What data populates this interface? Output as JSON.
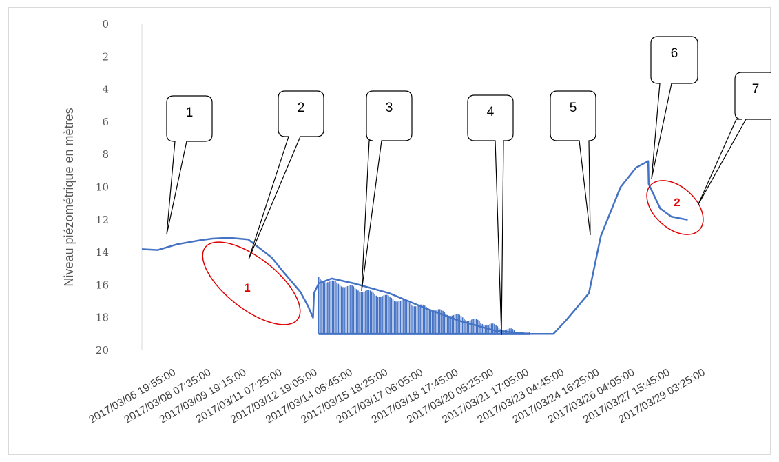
{
  "chart_data": {
    "type": "line",
    "ylabel": "Niveau piézométrique en mètres",
    "y_inverted": true,
    "ylim": [
      0,
      20
    ],
    "y_ticks": [
      "0",
      "2",
      "4",
      "6",
      "8",
      "10",
      "12",
      "14",
      "16",
      "18",
      "20"
    ],
    "x_ticks": [
      "2017/03/06 19:55:00",
      "2017/03/08 07:35:00",
      "2017/03/09 19:15:00",
      "2017/03/11 07:25:00",
      "2017/03/12 19:05:00",
      "2017/03/14 06:45:00",
      "2017/03/15 18:25:00",
      "2017/03/17 06:05:00",
      "2017/03/18 17:45:00",
      "2017/03/20 05:25:00",
      "2017/03/21 17:05:00",
      "2017/03/23 04:45:00",
      "2017/03/24 16:25:00",
      "2017/03/26 04:05:00",
      "2017/03/27 15:45:00",
      "2017/03/29 03:25:00"
    ],
    "grid": false,
    "series_color": "#4472c4",
    "series": [
      {
        "x": [
          "2017/03/06 19:55:00",
          "2017/03/07 12:00:00",
          "2017/03/08 07:35:00",
          "2017/03/09 07:00:00",
          "2017/03/09 19:15:00",
          "2017/03/10 12:00:00",
          "2017/03/11 07:25:00",
          "2017/03/12 07:00:00",
          "2017/03/12 19:05:00",
          "2017/03/13 12:00:00",
          "2017/03/13 20:00:00",
          "2017/03/14 01:00:00",
          "2017/03/14 02:00:00",
          "2017/03/14 06:45:00",
          "2017/03/14 20:00:00",
          "2017/03/15 18:25:00",
          "2017/03/17 06:05:00",
          "2017/03/18 17:45:00",
          "2017/03/20 05:25:00",
          "2017/03/21 17:05:00",
          "2017/03/23 04:45:00",
          "2017/03/24 04:00:00",
          "2017/03/24 16:25:00",
          "2017/03/25 16:00:00",
          "2017/03/26 04:05:00",
          "2017/03/27 00:00:00",
          "2017/03/27 15:45:00",
          "2017/03/28 04:00:00",
          "2017/03/28 04:30:00",
          "2017/03/28 16:00:00",
          "2017/03/29 03:25:00",
          "2017/03/29 20:00:00"
        ],
        "values": [
          13.8,
          13.85,
          13.5,
          13.25,
          13.15,
          13.1,
          13.2,
          14.3,
          15.2,
          16.4,
          17.3,
          18.0,
          16.5,
          15.9,
          15.6,
          15.9,
          16.5,
          17.4,
          18.2,
          18.8,
          19.0,
          19.0,
          18.2,
          16.5,
          13.0,
          10.0,
          8.8,
          8.4,
          9.8,
          11.3,
          11.8,
          12.0
        ],
        "oscillation": {
          "from": "2017/03/14 06:45:00",
          "to": "2017/03/23 04:45:00",
          "max_level": 19.0
        }
      }
    ],
    "callouts": [
      "1",
      "2",
      "3",
      "4",
      "5",
      "6",
      "7"
    ],
    "zones": [
      "1",
      "2"
    ]
  }
}
